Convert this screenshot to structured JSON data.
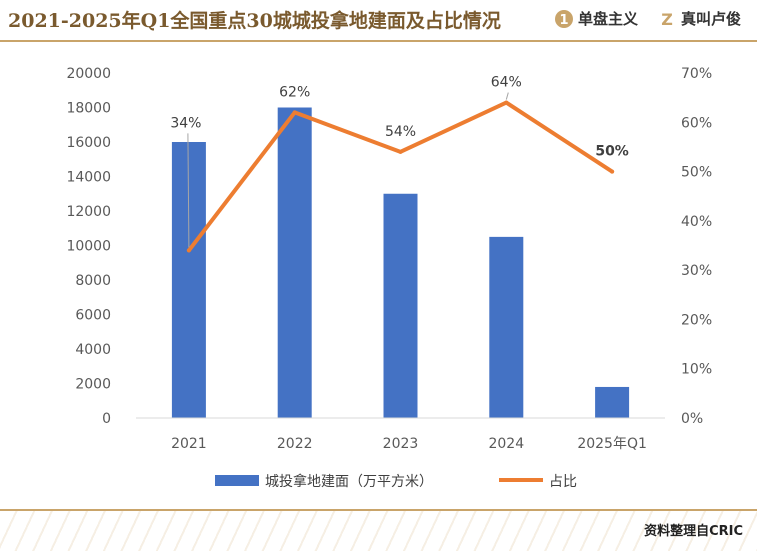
{
  "header": {
    "title": "2021-2025年Q1全国重点30城城投拿地建面及占比情况",
    "brand_primary": "单盘主义",
    "brand_secondary": "真叫卢俊"
  },
  "footer": {
    "source": "资料整理自CRIC"
  },
  "colors": {
    "bar": "#4472C4",
    "line": "#ED7D31",
    "highlight_label": "#E8400C",
    "accent": "#c9a46a"
  },
  "chart_data": {
    "type": "bar",
    "categories": [
      "2021",
      "2022",
      "2023",
      "2024",
      "2025年Q1"
    ],
    "series": [
      {
        "name": "城投拿地建面（万平方米）",
        "type": "bar",
        "axis": "left",
        "values": [
          16000,
          18000,
          13000,
          10500,
          1800
        ]
      },
      {
        "name": "占比",
        "type": "line",
        "axis": "right",
        "values": [
          34,
          62,
          54,
          64,
          50
        ],
        "data_labels": [
          "34%",
          "62%",
          "54%",
          "64%",
          "50%"
        ]
      }
    ],
    "y_left": {
      "range": [
        0,
        20000
      ],
      "ticks": [
        "0",
        "2000",
        "4000",
        "6000",
        "8000",
        "10000",
        "12000",
        "14000",
        "16000",
        "18000",
        "20000"
      ]
    },
    "y_right": {
      "range": [
        0,
        70
      ],
      "ticks": [
        "0%",
        "10%",
        "20%",
        "30%",
        "40%",
        "50%",
        "60%",
        "70%"
      ]
    },
    "grid": false,
    "legend_position": "bottom"
  }
}
